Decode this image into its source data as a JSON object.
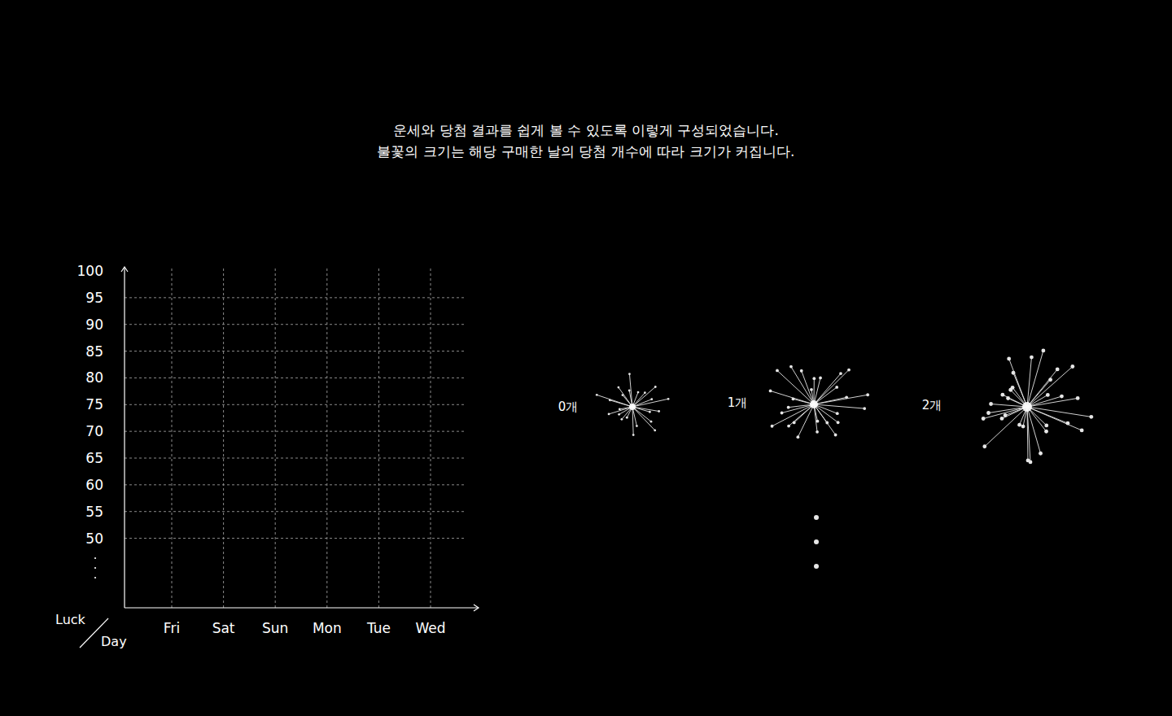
{
  "chart_data": {
    "type": "scatter",
    "title": "운세와 당첨 결과를 쉽게 볼 수 있도록 이렇게 구성되었습니다.",
    "subtitle": "불꽃의 크기는 해당 구매한 날의 당첨 개수에 따라 크기가 커집니다.",
    "x_label": "Day",
    "y_label": "Luck",
    "categories": [
      "Fri",
      "Sat",
      "Sun",
      "Mon",
      "Tue",
      "Wed"
    ],
    "values": [
      null,
      null,
      null,
      null,
      null,
      null
    ],
    "color": "#ffffff",
    "ylim": [
      37,
      100
    ],
    "yticks": [
      50,
      55,
      60,
      65,
      70,
      75,
      80,
      85,
      90,
      95,
      100
    ],
    "grid": true
  },
  "firework_legend": {
    "items": [
      {
        "value": 0,
        "label": "0개"
      },
      {
        "value": 1,
        "label": "1개"
      },
      {
        "value": 2,
        "label": "2개"
      }
    ]
  }
}
